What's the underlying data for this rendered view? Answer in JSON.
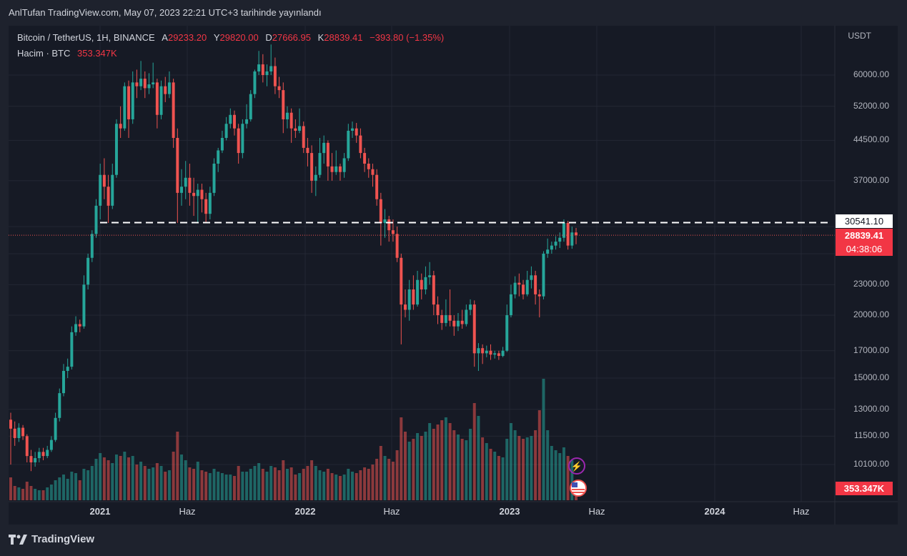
{
  "header": {
    "published": "AnlTufan TradingView.com, May 07, 2023 22:21 UTC+3 tarihinde yayınlandı"
  },
  "legend": {
    "symbol": "Bitcoin / TetherUS, 1H, BINANCE",
    "a_label": "A",
    "a_value": "29233.20",
    "y_label": "Y",
    "y_value": "29820.00",
    "d_label": "D",
    "d_value": "27666.95",
    "k_label": "K",
    "k_value": "28839.41",
    "change": "−393.80 (−1.35%)",
    "volume_label": "Hacim · BTC",
    "volume_value": "353.347K"
  },
  "axis": {
    "currency": "USDT",
    "y_ticks": [
      "60000.00",
      "52000.00",
      "44500.00",
      "37000.00",
      "23000.00",
      "20000.00",
      "17000.00",
      "15000.00",
      "13000.00",
      "11500.00",
      "10100.00"
    ],
    "x_ticks": [
      {
        "label": "2021",
        "year": true
      },
      {
        "label": "Haz",
        "year": false
      },
      {
        "label": "2022",
        "year": true
      },
      {
        "label": "Haz",
        "year": false
      },
      {
        "label": "2023",
        "year": true
      },
      {
        "label": "Haz",
        "year": false
      },
      {
        "label": "2024",
        "year": true
      },
      {
        "label": "Haz",
        "year": false
      }
    ]
  },
  "markers": {
    "resistance_label": "30541.10",
    "last_price_label": "28839.41",
    "countdown_label": "04:38:06",
    "volume_label": "353.347K"
  },
  "brand": {
    "name": "TradingView"
  },
  "colors": {
    "up": "#26a69a",
    "down": "#ef5350",
    "bg": "#161a25",
    "grid": "#232734"
  },
  "chart_data": {
    "type": "candlestick",
    "ylabel": "USDT",
    "scale": "log",
    "ylim": [
      9300,
      70000
    ],
    "resistance": 30541.1,
    "last_price": 28839.41,
    "candles": [
      [
        12400,
        11900,
        12800,
        10100,
        1.6
      ],
      [
        11900,
        11400,
        12300,
        11000,
        1.0
      ],
      [
        11400,
        11950,
        12200,
        11200,
        0.9
      ],
      [
        11950,
        11500,
        12100,
        11300,
        0.8
      ],
      [
        11500,
        10500,
        11600,
        10200,
        1.3
      ],
      [
        10500,
        10200,
        10800,
        9800,
        1.0
      ],
      [
        10200,
        10400,
        10700,
        10000,
        0.8
      ],
      [
        10400,
        10700,
        10900,
        10200,
        0.7
      ],
      [
        10700,
        10500,
        10900,
        10300,
        0.7
      ],
      [
        10500,
        10800,
        11000,
        10400,
        0.9
      ],
      [
        10800,
        11300,
        11500,
        10700,
        1.1
      ],
      [
        11300,
        12500,
        12800,
        11200,
        1.4
      ],
      [
        12500,
        14000,
        14300,
        12300,
        1.6
      ],
      [
        14000,
        15500,
        16000,
        13800,
        1.8
      ],
      [
        15500,
        15800,
        16400,
        15000,
        1.5
      ],
      [
        15800,
        18500,
        19000,
        15600,
        2.0
      ],
      [
        18500,
        19200,
        19900,
        18200,
        1.9
      ],
      [
        19200,
        19000,
        19600,
        18500,
        1.4
      ],
      [
        19000,
        23000,
        24000,
        18800,
        2.2
      ],
      [
        23000,
        26000,
        26500,
        22500,
        2.1
      ],
      [
        26000,
        29000,
        29500,
        25500,
        2.4
      ],
      [
        29000,
        33000,
        34000,
        28500,
        2.9
      ],
      [
        33000,
        38000,
        40000,
        31000,
        3.3
      ],
      [
        38000,
        36000,
        41000,
        34000,
        3.0
      ],
      [
        36000,
        33000,
        38000,
        30500,
        2.8
      ],
      [
        33000,
        38000,
        40000,
        32500,
        2.6
      ],
      [
        38000,
        48000,
        49000,
        37500,
        3.2
      ],
      [
        48000,
        47000,
        52000,
        45000,
        3.1
      ],
      [
        47000,
        57000,
        58000,
        46500,
        3.4
      ],
      [
        57000,
        49000,
        58500,
        45000,
        3.0
      ],
      [
        49000,
        58000,
        61000,
        48000,
        3.1
      ],
      [
        58000,
        57000,
        61500,
        54000,
        2.5
      ],
      [
        57000,
        59000,
        64000,
        56000,
        2.7
      ],
      [
        59000,
        56500,
        61000,
        54000,
        2.4
      ],
      [
        56500,
        57500,
        60500,
        55000,
        2.2
      ],
      [
        57500,
        58000,
        63500,
        56500,
        2.3
      ],
      [
        58000,
        50000,
        59000,
        47000,
        2.6
      ],
      [
        50000,
        57000,
        58500,
        49000,
        2.4
      ],
      [
        57000,
        55000,
        59500,
        53000,
        2.0
      ],
      [
        55000,
        58000,
        61000,
        54000,
        2.1
      ],
      [
        58000,
        45000,
        59000,
        43000,
        3.4
      ],
      [
        45000,
        35000,
        47000,
        30500,
        4.8
      ],
      [
        35000,
        36000,
        39000,
        33000,
        3.2
      ],
      [
        36000,
        37500,
        40500,
        34000,
        2.8
      ],
      [
        37500,
        35000,
        40000,
        33000,
        2.3
      ],
      [
        35000,
        34500,
        37500,
        31500,
        2.2
      ],
      [
        34500,
        35500,
        36500,
        30500,
        2.7
      ],
      [
        35500,
        34000,
        36500,
        32000,
        2.1
      ],
      [
        34000,
        31800,
        35000,
        30500,
        2.0
      ],
      [
        31800,
        35000,
        36000,
        31000,
        1.9
      ],
      [
        35000,
        40000,
        41000,
        34500,
        2.2
      ],
      [
        40000,
        42500,
        43000,
        38500,
        2.0
      ],
      [
        42500,
        45000,
        46500,
        42000,
        1.9
      ],
      [
        45000,
        48000,
        49500,
        44500,
        1.8
      ],
      [
        48000,
        50000,
        51500,
        47000,
        1.8
      ],
      [
        50000,
        47000,
        51000,
        45500,
        1.7
      ],
      [
        47000,
        42000,
        48000,
        40000,
        2.4
      ],
      [
        42000,
        48000,
        49000,
        41000,
        2.0
      ],
      [
        48000,
        49000,
        52500,
        47000,
        2.0
      ],
      [
        49000,
        55000,
        56000,
        48500,
        2.2
      ],
      [
        55000,
        61000,
        61500,
        54000,
        2.4
      ],
      [
        61000,
        63000,
        67000,
        60000,
        2.6
      ],
      [
        63000,
        60000,
        66000,
        58000,
        2.2
      ],
      [
        60000,
        61000,
        63000,
        57000,
        2.0
      ],
      [
        61000,
        62500,
        69000,
        60000,
        2.4
      ],
      [
        62500,
        57000,
        65000,
        55000,
        2.3
      ],
      [
        57000,
        56000,
        59500,
        54000,
        2.1
      ],
      [
        56000,
        49000,
        58000,
        46000,
        2.8
      ],
      [
        49000,
        50500,
        52000,
        47000,
        2.2
      ],
      [
        50500,
        47000,
        51500,
        44000,
        2.3
      ],
      [
        47000,
        46500,
        49000,
        45000,
        1.8
      ],
      [
        46500,
        47500,
        51500,
        46000,
        1.9
      ],
      [
        47500,
        43000,
        48500,
        42000,
        2.2
      ],
      [
        43000,
        42000,
        45000,
        39500,
        2.4
      ],
      [
        42000,
        37000,
        43500,
        35000,
        2.8
      ],
      [
        37000,
        38000,
        39500,
        34500,
        2.4
      ],
      [
        38000,
        42000,
        45000,
        37500,
        2.1
      ],
      [
        42000,
        44000,
        45500,
        40000,
        2.0
      ],
      [
        44000,
        39500,
        44500,
        37000,
        2.2
      ],
      [
        39500,
        38500,
        42000,
        37000,
        1.9
      ],
      [
        38500,
        39500,
        42500,
        38000,
        1.8
      ],
      [
        39500,
        38500,
        40000,
        37000,
        1.7
      ],
      [
        38500,
        41000,
        42000,
        37500,
        1.8
      ],
      [
        41000,
        46500,
        48000,
        40500,
        2.2
      ],
      [
        46500,
        47000,
        48500,
        45000,
        2.0
      ],
      [
        47000,
        45500,
        48200,
        44000,
        1.9
      ],
      [
        45500,
        42000,
        47000,
        41000,
        2.1
      ],
      [
        42000,
        40000,
        43000,
        38500,
        2.3
      ],
      [
        40000,
        39000,
        41000,
        37500,
        2.2
      ],
      [
        39000,
        38000,
        40000,
        36000,
        2.5
      ],
      [
        38000,
        34000,
        39000,
        33000,
        2.9
      ],
      [
        34000,
        30500,
        35000,
        27500,
        3.8
      ],
      [
        30500,
        31000,
        32500,
        28500,
        3.1
      ],
      [
        31000,
        29500,
        31500,
        28000,
        2.9
      ],
      [
        29500,
        29000,
        31000,
        28000,
        2.7
      ],
      [
        29000,
        26000,
        30000,
        25500,
        3.5
      ],
      [
        26000,
        21000,
        26500,
        17500,
        5.8
      ],
      [
        21000,
        20500,
        22500,
        19800,
        4.8
      ],
      [
        20500,
        22500,
        23500,
        19500,
        4.1
      ],
      [
        22500,
        21000,
        24000,
        20500,
        4.3
      ],
      [
        21000,
        23500,
        24500,
        20800,
        4.7
      ],
      [
        23500,
        22500,
        24200,
        21500,
        4.5
      ],
      [
        22500,
        23800,
        25000,
        22000,
        4.8
      ],
      [
        23800,
        24000,
        25500,
        23000,
        5.4
      ],
      [
        24000,
        21000,
        24500,
        20000,
        5.0
      ],
      [
        21000,
        20000,
        21800,
        19200,
        5.3
      ],
      [
        20000,
        19300,
        20500,
        18700,
        5.6
      ],
      [
        19300,
        20000,
        21500,
        19000,
        5.8
      ],
      [
        20000,
        19500,
        22500,
        19000,
        5.4
      ],
      [
        19500,
        19000,
        20000,
        18200,
        4.9
      ],
      [
        19000,
        19500,
        20200,
        18600,
        4.6
      ],
      [
        19500,
        19200,
        20500,
        18800,
        4.3
      ],
      [
        19200,
        20500,
        21000,
        19000,
        4.2
      ],
      [
        20500,
        21000,
        21500,
        20000,
        5.0
      ],
      [
        21000,
        16800,
        21400,
        15800,
        6.8
      ],
      [
        16800,
        17200,
        17600,
        15500,
        5.9
      ],
      [
        17200,
        16800,
        17500,
        16000,
        4.4
      ],
      [
        16800,
        17000,
        17400,
        16500,
        4.0
      ],
      [
        17000,
        16700,
        17500,
        16300,
        3.6
      ],
      [
        16700,
        16800,
        17000,
        16400,
        3.4
      ],
      [
        16800,
        16600,
        17000,
        16300,
        3.1
      ],
      [
        16600,
        17000,
        17300,
        16500,
        3.0
      ],
      [
        17000,
        20000,
        21000,
        16900,
        4.3
      ],
      [
        20000,
        22000,
        23000,
        19800,
        5.4
      ],
      [
        22000,
        23200,
        23900,
        21600,
        4.9
      ],
      [
        23200,
        23000,
        24200,
        21800,
        4.5
      ],
      [
        23000,
        22000,
        23500,
        21500,
        4.3
      ],
      [
        22000,
        23500,
        24500,
        21800,
        4.4
      ],
      [
        23500,
        24000,
        25000,
        22600,
        4.5
      ],
      [
        24000,
        22000,
        24500,
        21000,
        4.9
      ],
      [
        22000,
        21800,
        22500,
        19800,
        6.3
      ],
      [
        21800,
        26500,
        26800,
        21500,
        8.5
      ],
      [
        26500,
        27000,
        28400,
        26000,
        4.9
      ],
      [
        27000,
        27500,
        28000,
        26500,
        3.8
      ],
      [
        27500,
        28000,
        28700,
        27000,
        3.5
      ],
      [
        28000,
        28500,
        29200,
        27200,
        3.3
      ],
      [
        28500,
        30500,
        31000,
        28000,
        3.7
      ],
      [
        30500,
        27500,
        30800,
        27000,
        3.1
      ],
      [
        27500,
        29200,
        30000,
        27100,
        2.8
      ],
      [
        29200,
        28839,
        29820,
        27667,
        1.4
      ]
    ]
  }
}
